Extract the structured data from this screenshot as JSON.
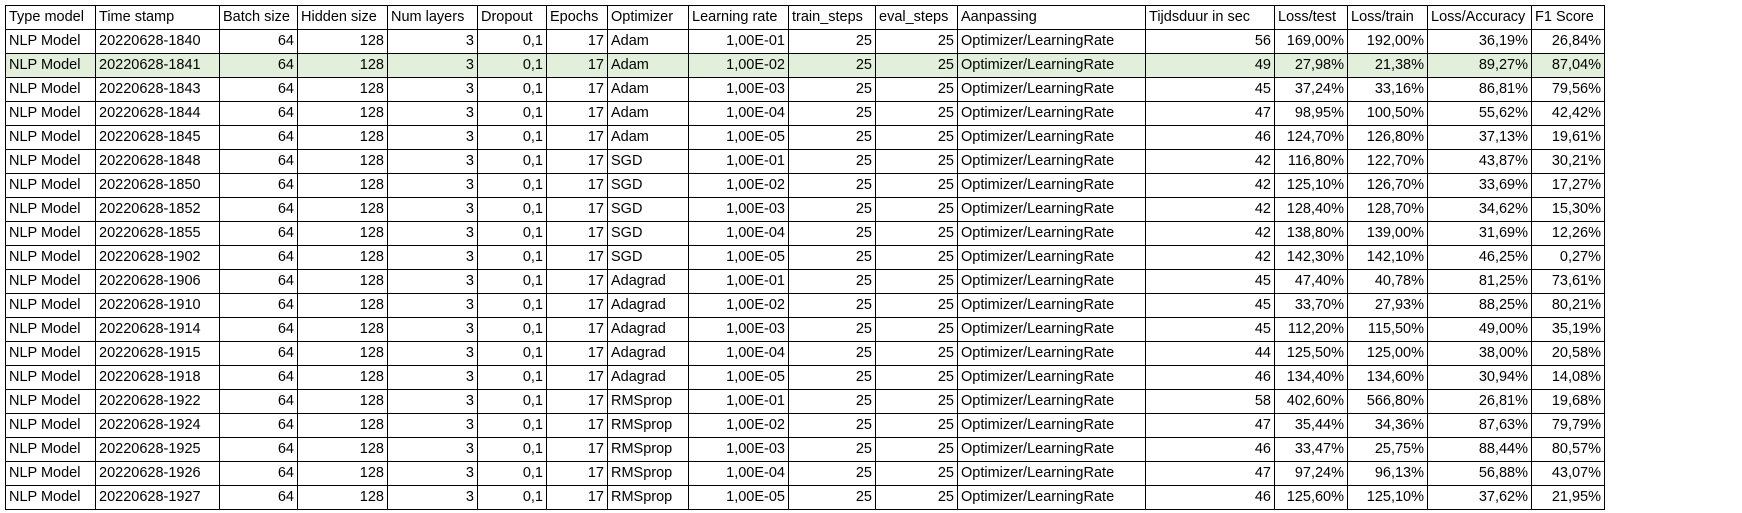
{
  "headers": [
    "Type model",
    "Time stamp",
    "Batch size",
    "Hidden size",
    "Num layers",
    "Dropout",
    "Epochs",
    "Optimizer",
    "Learning rate",
    "train_steps",
    "eval_steps",
    "Aanpassing",
    "Tijdsduur in sec",
    "Loss/test",
    "Loss/train",
    "Loss/Accuracy",
    "F1 Score"
  ],
  "highlighted_row": 1,
  "highlight_color": "#e2efda",
  "rows": [
    [
      "NLP Model",
      "20220628-1840",
      "64",
      "128",
      "3",
      "0,1",
      "17",
      "Adam",
      "1,00E-01",
      "25",
      "25",
      "Optimizer/LearningRate",
      "56",
      "169,00%",
      "192,00%",
      "36,19%",
      "26,84%"
    ],
    [
      "NLP Model",
      "20220628-1841",
      "64",
      "128",
      "3",
      "0,1",
      "17",
      "Adam",
      "1,00E-02",
      "25",
      "25",
      "Optimizer/LearningRate",
      "49",
      "27,98%",
      "21,38%",
      "89,27%",
      "87,04%"
    ],
    [
      "NLP Model",
      "20220628-1843",
      "64",
      "128",
      "3",
      "0,1",
      "17",
      "Adam",
      "1,00E-03",
      "25",
      "25",
      "Optimizer/LearningRate",
      "45",
      "37,24%",
      "33,16%",
      "86,81%",
      "79,56%"
    ],
    [
      "NLP Model",
      "20220628-1844",
      "64",
      "128",
      "3",
      "0,1",
      "17",
      "Adam",
      "1,00E-04",
      "25",
      "25",
      "Optimizer/LearningRate",
      "47",
      "98,95%",
      "100,50%",
      "55,62%",
      "42,42%"
    ],
    [
      "NLP Model",
      "20220628-1845",
      "64",
      "128",
      "3",
      "0,1",
      "17",
      "Adam",
      "1,00E-05",
      "25",
      "25",
      "Optimizer/LearningRate",
      "46",
      "124,70%",
      "126,80%",
      "37,13%",
      "19,61%"
    ],
    [
      "NLP Model",
      "20220628-1848",
      "64",
      "128",
      "3",
      "0,1",
      "17",
      "SGD",
      "1,00E-01",
      "25",
      "25",
      "Optimizer/LearningRate",
      "42",
      "116,80%",
      "122,70%",
      "43,87%",
      "30,21%"
    ],
    [
      "NLP Model",
      "20220628-1850",
      "64",
      "128",
      "3",
      "0,1",
      "17",
      "SGD",
      "1,00E-02",
      "25",
      "25",
      "Optimizer/LearningRate",
      "42",
      "125,10%",
      "126,70%",
      "33,69%",
      "17,27%"
    ],
    [
      "NLP Model",
      "20220628-1852",
      "64",
      "128",
      "3",
      "0,1",
      "17",
      "SGD",
      "1,00E-03",
      "25",
      "25",
      "Optimizer/LearningRate",
      "42",
      "128,40%",
      "128,70%",
      "34,62%",
      "15,30%"
    ],
    [
      "NLP Model",
      "20220628-1855",
      "64",
      "128",
      "3",
      "0,1",
      "17",
      "SGD",
      "1,00E-04",
      "25",
      "25",
      "Optimizer/LearningRate",
      "42",
      "138,80%",
      "139,00%",
      "31,69%",
      "12,26%"
    ],
    [
      "NLP Model",
      "20220628-1902",
      "64",
      "128",
      "3",
      "0,1",
      "17",
      "SGD",
      "1,00E-05",
      "25",
      "25",
      "Optimizer/LearningRate",
      "42",
      "142,30%",
      "142,10%",
      "46,25%",
      "0,27%"
    ],
    [
      "NLP Model",
      "20220628-1906",
      "64",
      "128",
      "3",
      "0,1",
      "17",
      "Adagrad",
      "1,00E-01",
      "25",
      "25",
      "Optimizer/LearningRate",
      "45",
      "47,40%",
      "40,78%",
      "81,25%",
      "73,61%"
    ],
    [
      "NLP Model",
      "20220628-1910",
      "64",
      "128",
      "3",
      "0,1",
      "17",
      "Adagrad",
      "1,00E-02",
      "25",
      "25",
      "Optimizer/LearningRate",
      "45",
      "33,70%",
      "27,93%",
      "88,25%",
      "80,21%"
    ],
    [
      "NLP Model",
      "20220628-1914",
      "64",
      "128",
      "3",
      "0,1",
      "17",
      "Adagrad",
      "1,00E-03",
      "25",
      "25",
      "Optimizer/LearningRate",
      "45",
      "112,20%",
      "115,50%",
      "49,00%",
      "35,19%"
    ],
    [
      "NLP Model",
      "20220628-1915",
      "64",
      "128",
      "3",
      "0,1",
      "17",
      "Adagrad",
      "1,00E-04",
      "25",
      "25",
      "Optimizer/LearningRate",
      "44",
      "125,50%",
      "125,00%",
      "38,00%",
      "20,58%"
    ],
    [
      "NLP Model",
      "20220628-1918",
      "64",
      "128",
      "3",
      "0,1",
      "17",
      "Adagrad",
      "1,00E-05",
      "25",
      "25",
      "Optimizer/LearningRate",
      "46",
      "134,40%",
      "134,60%",
      "30,94%",
      "14,08%"
    ],
    [
      "NLP Model",
      "20220628-1922",
      "64",
      "128",
      "3",
      "0,1",
      "17",
      "RMSprop",
      "1,00E-01",
      "25",
      "25",
      "Optimizer/LearningRate",
      "58",
      "402,60%",
      "566,80%",
      "26,81%",
      "19,68%"
    ],
    [
      "NLP Model",
      "20220628-1924",
      "64",
      "128",
      "3",
      "0,1",
      "17",
      "RMSprop",
      "1,00E-02",
      "25",
      "25",
      "Optimizer/LearningRate",
      "47",
      "35,44%",
      "34,36%",
      "87,63%",
      "79,79%"
    ],
    [
      "NLP Model",
      "20220628-1925",
      "64",
      "128",
      "3",
      "0,1",
      "17",
      "RMSprop",
      "1,00E-03",
      "25",
      "25",
      "Optimizer/LearningRate",
      "46",
      "33,47%",
      "25,75%",
      "88,44%",
      "80,57%"
    ],
    [
      "NLP Model",
      "20220628-1926",
      "64",
      "128",
      "3",
      "0,1",
      "17",
      "RMSprop",
      "1,00E-04",
      "25",
      "25",
      "Optimizer/LearningRate",
      "47",
      "97,24%",
      "96,13%",
      "56,88%",
      "43,07%"
    ],
    [
      "NLP Model",
      "20220628-1927",
      "64",
      "128",
      "3",
      "0,1",
      "17",
      "RMSprop",
      "1,00E-05",
      "25",
      "25",
      "Optimizer/LearningRate",
      "46",
      "125,60%",
      "125,10%",
      "37,62%",
      "21,95%"
    ]
  ]
}
